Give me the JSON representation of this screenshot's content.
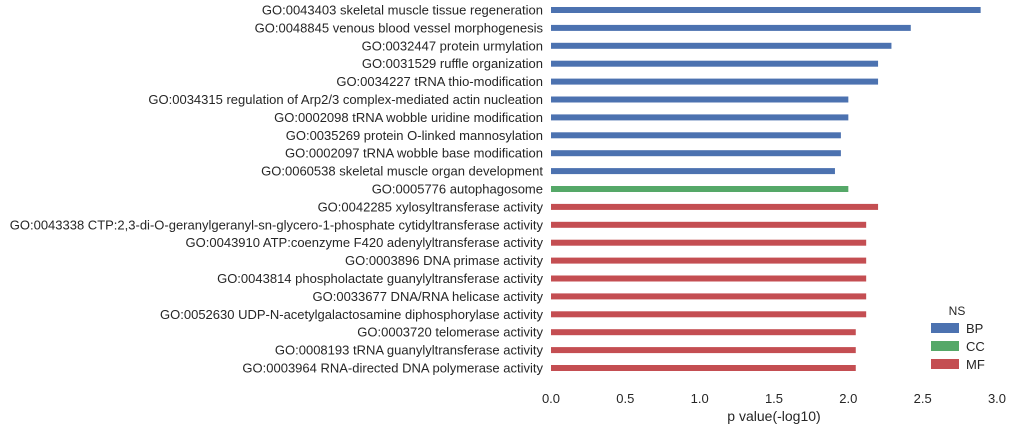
{
  "chart_data": {
    "type": "bar",
    "orientation": "horizontal",
    "xlabel": "p value(-log10)",
    "ylabel": "",
    "xlim": [
      0,
      3.0
    ],
    "xticks": [
      "0.0",
      "0.5",
      "1.0",
      "1.5",
      "2.0",
      "2.5",
      "3.0"
    ],
    "grid": false,
    "legend": {
      "title": "NS",
      "placement": "bottom-right",
      "entries": [
        {
          "name": "BP",
          "color": "#4c72b0"
        },
        {
          "name": "CC",
          "color": "#55a868"
        },
        {
          "name": "MF",
          "color": "#c44e52"
        }
      ]
    },
    "categories": [
      "GO:0043403 skeletal muscle tissue regeneration",
      "GO:0048845 venous blood vessel morphogenesis",
      "GO:0032447 protein urmylation",
      "GO:0031529 ruffle organization",
      "GO:0034227 tRNA thio-modification",
      "GO:0034315 regulation of Arp2/3 complex-mediated actin nucleation",
      "GO:0002098 tRNA wobble uridine modification",
      "GO:0035269 protein O-linked mannosylation",
      "GO:0002097 tRNA wobble base modification",
      "GO:0060538 skeletal muscle organ development",
      "GO:0005776 autophagosome",
      "GO:0042285 xylosyltransferase activity",
      "GO:0043338 CTP:2,3-di-O-geranylgeranyl-sn-glycero-1-phosphate cytidyltransferase activity",
      "GO:0043910 ATP:coenzyme F420 adenylyltransferase activity",
      "GO:0003896 DNA primase activity",
      "GO:0043814 phospholactate guanylyltransferase activity",
      "GO:0033677 DNA/RNA helicase activity",
      "GO:0052630 UDP-N-acetylgalactosamine diphosphorylase activity",
      "GO:0003720 telomerase activity",
      "GO:0008193 tRNA guanylyltransferase activity",
      "GO:0003964 RNA-directed DNA polymerase activity"
    ],
    "values": [
      2.89,
      2.42,
      2.29,
      2.2,
      2.2,
      2.0,
      2.0,
      1.95,
      1.95,
      1.91,
      2.0,
      2.2,
      2.12,
      2.12,
      2.12,
      2.12,
      2.12,
      2.12,
      2.05,
      2.05,
      2.05
    ],
    "groups": [
      "BP",
      "BP",
      "BP",
      "BP",
      "BP",
      "BP",
      "BP",
      "BP",
      "BP",
      "BP",
      "CC",
      "MF",
      "MF",
      "MF",
      "MF",
      "MF",
      "MF",
      "MF",
      "MF",
      "MF",
      "MF"
    ]
  }
}
